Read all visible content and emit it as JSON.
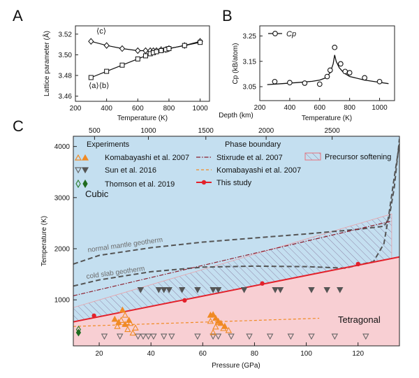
{
  "chart_data": [
    {
      "panel": "A",
      "type": "line",
      "xlabel": "Temperature (K)",
      "ylabel": "Lattice parameter (Å)",
      "xlim": [
        200,
        1060
      ],
      "ylim": [
        3.455,
        3.528
      ],
      "xticks": [
        200,
        400,
        600,
        800,
        1000
      ],
      "yticks": [
        3.46,
        3.48,
        3.5,
        3.52
      ],
      "ytick_labels": [
        "3.46",
        "3.48",
        "3.50",
        "3.52"
      ],
      "grid": false,
      "series": [
        {
          "name": "⟨c⟩",
          "marker": "diamond",
          "x": [
            300,
            400,
            500,
            600,
            650,
            680,
            700,
            720,
            750,
            780,
            800,
            900,
            1000
          ],
          "y": [
            3.513,
            3.509,
            3.506,
            3.504,
            3.504,
            3.504,
            3.504,
            3.504,
            3.505,
            3.505,
            3.506,
            3.509,
            3.513
          ]
        },
        {
          "name": "⟨a⟩⟨b⟩",
          "marker": "square",
          "x": [
            300,
            400,
            500,
            600,
            650,
            680,
            700,
            720,
            750,
            780,
            800,
            900,
            1000
          ],
          "y": [
            3.478,
            3.484,
            3.49,
            3.496,
            3.499,
            3.501,
            3.502,
            3.503,
            3.504,
            3.505,
            3.506,
            3.509,
            3.512
          ]
        }
      ]
    },
    {
      "panel": "B",
      "type": "line",
      "xlabel": "Temperature (K)",
      "ylabel": "Cp (kB/atom)",
      "xlim": [
        200,
        1100
      ],
      "ylim": [
        2.995,
        3.29
      ],
      "xticks": [
        200,
        400,
        600,
        800,
        1000
      ],
      "yticks": [
        3.05,
        3.15,
        3.25
      ],
      "ytick_labels": [
        "3.05",
        "3.15",
        "3.25"
      ],
      "legend": "Cp",
      "grid": false,
      "points": {
        "x": [
          300,
          400,
          500,
          600,
          650,
          670,
          700,
          740,
          770,
          800,
          900,
          1000
        ],
        "y": [
          3.07,
          3.066,
          3.064,
          3.06,
          3.09,
          3.115,
          3.205,
          3.14,
          3.11,
          3.105,
          3.085,
          3.07
        ]
      },
      "fit": {
        "x": [
          250,
          350,
          450,
          550,
          600,
          640,
          670,
          690,
          700,
          710,
          730,
          760,
          800,
          900,
          1000,
          1060
        ],
        "y": [
          3.058,
          3.062,
          3.066,
          3.071,
          3.076,
          3.085,
          3.105,
          3.14,
          3.175,
          3.15,
          3.125,
          3.105,
          3.09,
          3.076,
          3.067,
          3.062
        ]
      }
    },
    {
      "panel": "C",
      "type": "scatter",
      "xlabel": "Pressure (GPa)",
      "ylabel": "Temperature (K)",
      "top_xlabel": "Depth (km)",
      "xlim": [
        10,
        136
      ],
      "ylim": [
        100,
        4200
      ],
      "xticks": [
        20,
        40,
        60,
        80,
        100,
        120
      ],
      "yticks": [
        1000,
        2000,
        3000,
        4000
      ],
      "top_ticks": [
        {
          "label": "500",
          "p": 18.2
        },
        {
          "label": "1000",
          "p": 39.0
        },
        {
          "label": "1500",
          "p": 61.2
        },
        {
          "label": "2000",
          "p": 84.5
        },
        {
          "label": "2500",
          "p": 110.0
        }
      ],
      "region_labels": [
        "Cubic",
        "Tetragonal"
      ],
      "legend": {
        "experiments_title": "Experiments",
        "phase_title": "Phase boundary",
        "entries": [
          "Komabayashi et al. 2007",
          "Sun et al. 2016",
          "Thomson et al. 2019",
          "Stixrude et al. 2007",
          "Komabayashi et al. 2007",
          "This study",
          "Precursor softening"
        ]
      },
      "geotherm_labels": [
        "normal mantle geotherm",
        "cold slab geotherm"
      ],
      "this_study": {
        "x": [
          10,
          136
        ],
        "y": [
          570,
          1840
        ],
        "points": {
          "x": [
            18,
            53,
            83,
            120
          ],
          "y": [
            690,
            990,
            1320,
            1700
          ]
        }
      },
      "precursor_upper": {
        "x": [
          10,
          133
        ],
        "y": [
          850,
          2680
        ]
      },
      "stixrude_2007": {
        "x": [
          10,
          133
        ],
        "y": [
          1080,
          2540
        ]
      },
      "komabayashi_boundary": {
        "x": [
          10,
          105
        ],
        "y": [
          480,
          640
        ]
      },
      "normal_mantle_geotherm": {
        "x": [
          10,
          20,
          40,
          60,
          80,
          100,
          120,
          130,
          132,
          134,
          136
        ],
        "y": [
          1700,
          1870,
          2020,
          2130,
          2210,
          2290,
          2380,
          2440,
          2600,
          3200,
          4150
        ]
      },
      "cold_slab_geotherm": {
        "x": [
          10,
          20,
          40,
          60,
          80,
          100,
          115,
          126,
          130,
          132,
          134,
          136
        ],
        "y": [
          1270,
          1390,
          1550,
          1640,
          1660,
          1650,
          1620,
          1750,
          2100,
          2700,
          3400,
          4050
        ]
      },
      "komabayashi_open": {
        "x": [
          27,
          28.5,
          30,
          31,
          32,
          33,
          34,
          63,
          64,
          65,
          66,
          68,
          70
        ],
        "y": [
          480,
          600,
          700,
          420,
          540,
          350,
          450,
          580,
          360,
          470,
          560,
          440,
          400
        ]
      },
      "komabayashi_filled": {
        "x": [
          26,
          27.5,
          29,
          30,
          31.5,
          63,
          64,
          65,
          66,
          67,
          68.5
        ],
        "y": [
          620,
          560,
          800,
          520,
          600,
          700,
          710,
          640,
          580,
          540,
          480
        ]
      },
      "sun_open": {
        "x": [
          22,
          28,
          35,
          37,
          39,
          41,
          45,
          48,
          58,
          64,
          66,
          71,
          78,
          86,
          94,
          102,
          111,
          123
        ],
        "y": [
          290,
          290,
          290,
          290,
          290,
          290,
          290,
          290,
          290,
          290,
          290,
          290,
          290,
          290,
          290,
          290,
          290,
          290
        ]
      },
      "sun_filled": {
        "x": [
          36,
          43,
          45,
          47,
          52,
          58,
          64,
          66,
          76,
          88,
          90,
          102,
          108,
          113
        ],
        "y": [
          1200,
          1200,
          1200,
          1200,
          1200,
          1200,
          1200,
          1200,
          1200,
          1200,
          1200,
          1200,
          1200,
          1200
        ]
      },
      "thomson_open": {
        "x": [
          12
        ],
        "y": [
          420
        ]
      },
      "thomson_filled": {
        "x": [
          12
        ],
        "y": [
          360
        ]
      }
    }
  ]
}
